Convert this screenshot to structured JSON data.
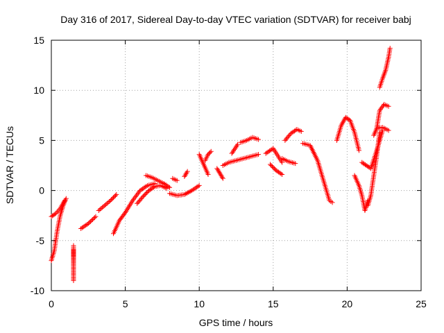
{
  "chart_data": {
    "type": "scatter",
    "title": "Day 316 of 2017, Sidereal Day-to-day VTEC variation (SDTVAR) for receiver babj",
    "xlabel": "GPS time / hours",
    "ylabel": "SDTVAR / TECUs",
    "xlim": [
      0,
      25
    ],
    "ylim": [
      -10,
      15
    ],
    "xticks": [
      0,
      5,
      10,
      15,
      20,
      25
    ],
    "yticks": [
      -10,
      -5,
      0,
      5,
      10,
      15
    ],
    "grid": true,
    "marker": "+",
    "color": "#ff0000",
    "segments": [
      {
        "x": [
          0.0,
          0.2,
          0.4,
          0.6,
          0.8,
          1.0
        ],
        "y": [
          -7.0,
          -6.0,
          -4.0,
          -2.5,
          -1.5,
          -0.8
        ]
      },
      {
        "x": [
          0.0,
          0.3,
          0.6,
          0.9
        ],
        "y": [
          -2.6,
          -2.3,
          -1.8,
          -1.0
        ]
      },
      {
        "x": [
          1.5,
          1.5,
          1.5,
          1.5,
          1.5,
          1.5
        ],
        "y": [
          -5.5,
          -6.5,
          -7.8,
          -9.0,
          -6.0,
          -5.9
        ]
      },
      {
        "x": [
          2.0,
          2.5,
          3.0
        ],
        "y": [
          -3.8,
          -3.3,
          -2.6
        ]
      },
      {
        "x": [
          3.2,
          3.6,
          4.0,
          4.4
        ],
        "y": [
          -2.0,
          -1.5,
          -1.0,
          -0.4
        ]
      },
      {
        "x": [
          4.2,
          4.6,
          5.0,
          5.5,
          6.0,
          6.5,
          7.0
        ],
        "y": [
          -4.3,
          -3.0,
          -2.2,
          -1.0,
          0.0,
          0.5,
          0.7
        ]
      },
      {
        "x": [
          5.8,
          6.2,
          6.6,
          7.0,
          7.4,
          7.8
        ],
        "y": [
          -1.3,
          -0.6,
          0.0,
          0.4,
          0.5,
          0.2
        ]
      },
      {
        "x": [
          6.4,
          6.8,
          7.2,
          7.6,
          8.0
        ],
        "y": [
          1.5,
          1.3,
          1.0,
          0.7,
          0.3
        ]
      },
      {
        "x": [
          8.0,
          8.5,
          9.0,
          9.5,
          10.0
        ],
        "y": [
          -0.3,
          -0.5,
          -0.4,
          0.0,
          0.5
        ]
      },
      {
        "x": [
          8.2,
          8.5
        ],
        "y": [
          1.2,
          1.0
        ]
      },
      {
        "x": [
          9.0,
          9.2
        ],
        "y": [
          1.4,
          1.9
        ]
      },
      {
        "x": [
          10.0,
          10.3,
          10.6
        ],
        "y": [
          3.6,
          2.6,
          1.6
        ]
      },
      {
        "x": [
          10.4,
          10.6,
          10.8
        ],
        "y": [
          3.0,
          3.6,
          3.9
        ]
      },
      {
        "x": [
          11.2,
          11.6
        ],
        "y": [
          2.2,
          1.2
        ]
      },
      {
        "x": [
          11.6,
          12.0,
          12.5,
          13.0,
          13.5,
          14.0
        ],
        "y": [
          2.5,
          2.8,
          3.0,
          3.2,
          3.4,
          3.6
        ]
      },
      {
        "x": [
          12.2,
          12.6
        ],
        "y": [
          3.7,
          4.6
        ]
      },
      {
        "x": [
          12.8,
          13.2,
          13.6,
          14.0
        ],
        "y": [
          4.8,
          5.0,
          5.3,
          5.1
        ]
      },
      {
        "x": [
          14.5,
          15.0,
          15.3,
          15.6
        ],
        "y": [
          3.7,
          4.2,
          3.5,
          2.8
        ]
      },
      {
        "x": [
          14.8,
          15.2,
          15.6
        ],
        "y": [
          2.6,
          2.0,
          1.6
        ]
      },
      {
        "x": [
          15.6,
          16.0,
          16.5
        ],
        "y": [
          3.2,
          2.9,
          2.7
        ]
      },
      {
        "x": [
          15.8,
          16.2,
          16.6,
          16.9
        ],
        "y": [
          5.0,
          5.7,
          6.1,
          5.9
        ]
      },
      {
        "x": [
          17.0,
          17.5,
          18.0,
          18.5,
          18.8,
          19.0
        ],
        "y": [
          4.7,
          4.5,
          3.0,
          0.5,
          -1.0,
          -1.2
        ]
      },
      {
        "x": [
          19.3,
          19.6,
          19.9,
          20.2,
          20.5,
          20.8
        ],
        "y": [
          5.0,
          6.5,
          7.3,
          7.0,
          5.8,
          4.0
        ]
      },
      {
        "x": [
          20.5,
          20.8,
          21.0,
          21.2,
          21.4
        ],
        "y": [
          1.5,
          0.5,
          -0.5,
          -2.0,
          -1.0
        ]
      },
      {
        "x": [
          21.0,
          21.3,
          21.6,
          22.0,
          22.4
        ],
        "y": [
          2.8,
          2.5,
          2.2,
          4.0,
          6.0
        ]
      },
      {
        "x": [
          21.4,
          21.6,
          21.8,
          22.0,
          22.2
        ],
        "y": [
          -1.5,
          -0.5,
          1.5,
          3.5,
          5.8
        ]
      },
      {
        "x": [
          21.8,
          22.0,
          22.2,
          22.5,
          22.8
        ],
        "y": [
          5.5,
          6.2,
          8.0,
          8.6,
          8.4
        ]
      },
      {
        "x": [
          22.0,
          22.4,
          22.8
        ],
        "y": [
          6.2,
          6.3,
          6.0
        ]
      },
      {
        "x": [
          22.2,
          22.4,
          22.6,
          22.8,
          22.9
        ],
        "y": [
          10.3,
          11.2,
          12.0,
          13.3,
          14.2
        ]
      }
    ]
  }
}
